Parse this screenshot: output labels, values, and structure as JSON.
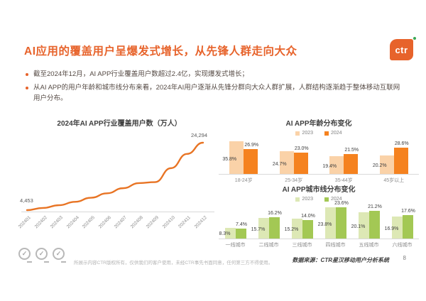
{
  "slide": {
    "title": "AI应用的覆盖用户呈爆发式增长，从先锋人群走向大众",
    "logo_text": "ctr",
    "bullets": [
      "截至2024年12月，AI APP行业覆盖用户数超过2.4亿，实现爆发式增长；",
      "从AI APP的用户年龄和城市线分布来看，2024年AI用户逐渐从先锋分群向大众人群扩展，人群结构逐渐趋于整体移动互联网用户分布。"
    ],
    "footer": {
      "copyright": "所展示内容CTR版权所有，仅供我们的客户使用，未经CTR事先书面同意，任何第三方不得使用。",
      "data_source": "数据来源：CTR星汉移动用户分析系统",
      "page_number": "8",
      "stamp_icon": "✓"
    },
    "colors": {
      "accent_orange": "#E7632B",
      "line_orange": "#E87424",
      "bar_2023_orange": "#FAD2A8",
      "bar_2024_orange": "#F5821F",
      "bar_2023_green": "#DDE8B5",
      "bar_2024_green": "#A3C854",
      "axis_gray": "#D9D9D9",
      "logo_dot_green": "#3BA857"
    }
  },
  "chart_data": [
    {
      "type": "line",
      "title": "2024年AI APP行业覆盖用户数（万人）",
      "x": [
        "202401",
        "202402",
        "202403",
        "202404",
        "202405",
        "202406",
        "202407",
        "202408",
        "202409",
        "202410",
        "202411",
        "202412"
      ],
      "values": [
        4453,
        5100,
        5900,
        6900,
        8100,
        9400,
        10900,
        12400,
        12700,
        16800,
        21000,
        24294
      ],
      "point_labels": {
        "first": "4,453",
        "last": "24,294"
      },
      "line_color": "#E87424",
      "grid": "off",
      "ylim": [
        4000,
        25000
      ]
    },
    {
      "type": "bar",
      "title": "AI APP年龄分布变化",
      "categories": [
        "18-24岁",
        "25-34岁",
        "35-44岁",
        "45岁以上"
      ],
      "series": [
        {
          "name": "2023",
          "values": [
            35.8,
            24.7,
            19.4,
            20.2
          ]
        },
        {
          "name": "2024",
          "values": [
            26.9,
            23.0,
            21.5,
            28.6
          ]
        }
      ],
      "unit": "%",
      "colors": [
        "#FAD2A8",
        "#F5821F"
      ],
      "legend_position": "top",
      "ylim": [
        0,
        40
      ]
    },
    {
      "type": "bar",
      "title": "AI APP城市线分布变化",
      "categories": [
        "一线城市",
        "二线城市",
        "三线城市",
        "四线城市",
        "五线城市",
        "六线城市"
      ],
      "series": [
        {
          "name": "2023",
          "values": [
            8.3,
            15.7,
            15.2,
            23.8,
            20.1,
            16.9
          ]
        },
        {
          "name": "2024",
          "values": [
            7.4,
            16.2,
            14.0,
            23.6,
            21.2,
            17.6
          ]
        }
      ],
      "unit": "%",
      "colors": [
        "#DDE8B5",
        "#A3C854"
      ],
      "legend_position": "top",
      "ylim": [
        0,
        26
      ]
    }
  ]
}
